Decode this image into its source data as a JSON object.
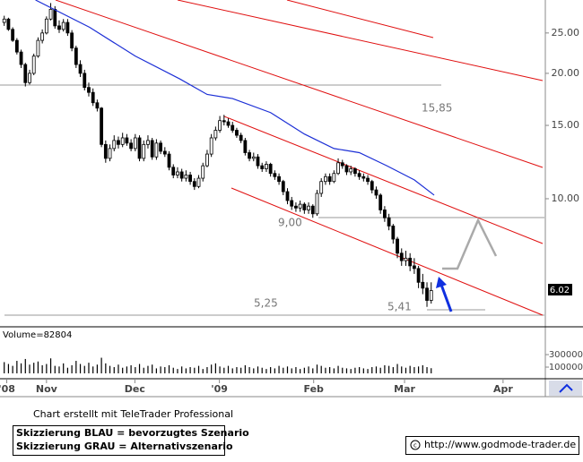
{
  "chart_data": {
    "type": "candlestick",
    "ylim": [
      5,
      30
    ],
    "log_scale": true,
    "yticks": [
      {
        "value": 25,
        "label": "25.00"
      },
      {
        "value": 20,
        "label": "20.00"
      },
      {
        "value": 15,
        "label": "15.00"
      },
      {
        "value": 10,
        "label": "10.00"
      }
    ],
    "xlim": [
      -1,
      128
    ],
    "xticks": [
      {
        "value": 0.6,
        "label": "'08"
      },
      {
        "value": 10,
        "label": "Nov"
      },
      {
        "value": 30.9,
        "label": "Dec"
      },
      {
        "value": 50.9,
        "label": "'09"
      },
      {
        "value": 73.2,
        "label": "Feb"
      },
      {
        "value": 94.7,
        "label": "Mar"
      },
      {
        "value": 118,
        "label": "Apr"
      }
    ],
    "candles": [
      [
        26.5,
        27.5,
        26,
        27
      ],
      [
        27,
        27.2,
        25.3,
        25.5
      ],
      [
        25.5,
        25.8,
        23.8,
        24
      ],
      [
        24,
        24.3,
        22.2,
        22.5
      ],
      [
        22.5,
        22.8,
        20.6,
        21
      ],
      [
        21,
        21.2,
        18.6,
        19
      ],
      [
        19,
        20.4,
        18.8,
        20
      ],
      [
        20,
        22.3,
        19.8,
        22
      ],
      [
        22,
        24.4,
        21.8,
        24
      ],
      [
        24,
        25.5,
        23.6,
        25
      ],
      [
        25,
        27.4,
        24.8,
        27
      ],
      [
        27,
        29.5,
        26.8,
        28.5
      ],
      [
        28.5,
        29,
        25.6,
        26
      ],
      [
        26,
        26.8,
        25,
        25.5
      ],
      [
        25.5,
        27,
        25.2,
        26.5
      ],
      [
        26.5,
        27,
        24.6,
        25
      ],
      [
        25,
        25.4,
        22.6,
        23
      ],
      [
        23,
        23.3,
        20.6,
        21
      ],
      [
        21,
        21.5,
        19.6,
        20
      ],
      [
        20,
        20.4,
        18.2,
        18.5
      ],
      [
        18.5,
        19,
        17.6,
        18
      ],
      [
        18,
        18.4,
        16.7,
        17
      ],
      [
        17,
        17.3,
        16.2,
        16.5
      ],
      [
        16.5,
        16.6,
        13.3,
        13.5
      ],
      [
        13.5,
        13.8,
        12.2,
        12.5
      ],
      [
        12.5,
        13.5,
        12.3,
        13.2
      ],
      [
        13.2,
        14.2,
        13,
        13.8
      ],
      [
        13.8,
        14.1,
        13.2,
        13.5
      ],
      [
        13.5,
        14.4,
        13.3,
        14
      ],
      [
        14,
        14.3,
        13.4,
        13.6
      ],
      [
        13.6,
        13.9,
        13,
        13.2
      ],
      [
        13.2,
        14.3,
        13,
        14
      ],
      [
        14,
        14.2,
        12.3,
        12.5
      ],
      [
        12.5,
        13.8,
        12.3,
        13.5
      ],
      [
        13.5,
        14.2,
        13.2,
        13.8
      ],
      [
        13.8,
        14,
        12.4,
        12.6
      ],
      [
        12.6,
        13.9,
        12.4,
        13.6
      ],
      [
        13.6,
        13.8,
        12.8,
        13
      ],
      [
        13,
        13.3,
        12.6,
        12.8
      ],
      [
        12.8,
        13,
        11.7,
        11.9
      ],
      [
        11.9,
        12.1,
        11.2,
        11.4
      ],
      [
        11.4,
        11.9,
        11.2,
        11.6
      ],
      [
        11.6,
        11.8,
        11,
        11.2
      ],
      [
        11.2,
        11.7,
        11,
        11.4
      ],
      [
        11.4,
        11.6,
        10.8,
        11
      ],
      [
        11,
        11.2,
        10.5,
        10.7
      ],
      [
        10.7,
        11.4,
        10.6,
        11.2
      ],
      [
        11.2,
        12.2,
        11,
        12
      ],
      [
        12,
        13.1,
        11.9,
        12.8
      ],
      [
        12.8,
        14.3,
        12.6,
        14
      ],
      [
        14,
        14.9,
        13.8,
        14.6
      ],
      [
        14.6,
        15.8,
        14.4,
        15.4
      ],
      [
        15.4,
        15.9,
        15,
        15.3
      ],
      [
        15.3,
        15.6,
        14.8,
        15
      ],
      [
        15,
        15.3,
        14.4,
        14.6
      ],
      [
        14.6,
        14.8,
        14,
        14.2
      ],
      [
        14.2,
        14.4,
        13.6,
        13.8
      ],
      [
        13.8,
        14,
        12.7,
        12.9
      ],
      [
        12.9,
        13.1,
        12.3,
        12.5
      ],
      [
        12.5,
        12.9,
        12.3,
        12.6
      ],
      [
        12.6,
        12.8,
        11.8,
        12
      ],
      [
        12,
        12.2,
        11.6,
        11.8
      ],
      [
        11.8,
        12.3,
        11.6,
        12.1
      ],
      [
        12.1,
        12.2,
        11.3,
        11.5
      ],
      [
        11.5,
        11.7,
        11.1,
        11.3
      ],
      [
        11.3,
        11.5,
        10.8,
        11
      ],
      [
        11,
        11.1,
        10.2,
        10.4
      ],
      [
        10.4,
        10.6,
        9.7,
        9.9
      ],
      [
        9.9,
        10.1,
        9.4,
        9.6
      ],
      [
        9.6,
        9.8,
        9.3,
        9.5
      ],
      [
        9.5,
        9.9,
        9.3,
        9.7
      ],
      [
        9.7,
        9.8,
        9.2,
        9.4
      ],
      [
        9.4,
        9.8,
        9.2,
        9.6
      ],
      [
        9.6,
        9.7,
        9,
        9.2
      ],
      [
        9.2,
        10.5,
        9.1,
        10.3
      ],
      [
        10.3,
        11.2,
        10.1,
        11
      ],
      [
        11,
        11.5,
        10.8,
        11.3
      ],
      [
        11.3,
        11.5,
        10.8,
        11
      ],
      [
        11,
        11.7,
        10.9,
        11.5
      ],
      [
        11.5,
        12.5,
        11.4,
        12.2
      ],
      [
        12.2,
        12.4,
        11.8,
        12
      ],
      [
        12,
        12.1,
        11.4,
        11.6
      ],
      [
        11.6,
        12,
        11.4,
        11.8
      ],
      [
        11.8,
        11.9,
        11.3,
        11.5
      ],
      [
        11.5,
        11.7,
        11.1,
        11.3
      ],
      [
        11.3,
        11.5,
        11,
        11.2
      ],
      [
        11.2,
        11.4,
        10.8,
        11
      ],
      [
        11,
        11.1,
        10.3,
        10.5
      ],
      [
        10.5,
        10.7,
        10,
        10.2
      ],
      [
        10.2,
        10.3,
        9.2,
        9.4
      ],
      [
        9.4,
        9.6,
        8.8,
        9
      ],
      [
        9,
        9.2,
        8.4,
        8.6
      ],
      [
        8.6,
        8.7,
        7.8,
        8
      ],
      [
        8,
        8.1,
        7.2,
        7.4
      ],
      [
        7.4,
        7.6,
        6.9,
        7.1
      ],
      [
        7.1,
        7.5,
        6.9,
        7.2
      ],
      [
        7.2,
        7.4,
        6.7,
        6.9
      ],
      [
        6.9,
        7.2,
        6.6,
        6.8
      ],
      [
        6.8,
        6.9,
        6.1,
        6.3
      ],
      [
        6.3,
        6.6,
        5.9,
        6.1
      ],
      [
        6.1,
        6.3,
        5.5,
        5.7
      ],
      [
        5.7,
        6.3,
        5.6,
        6.02
      ]
    ],
    "ma": {
      "color": "#1c2fd6",
      "x": [
        7.4,
        20.2,
        31,
        41.5,
        48,
        54,
        63,
        71,
        78,
        84,
        90.5,
        97,
        101.7
      ],
      "values": [
        30,
        25.8,
        22,
        19.4,
        17.8,
        17.4,
        16.1,
        14.3,
        13.2,
        12.9,
        12,
        11.1,
        10.2
      ]
    },
    "annotations": [
      "15,85",
      "9,00",
      "5,25",
      "5,41"
    ],
    "volume": {
      "label": "Volume=82804",
      "ylim": [
        0,
        530000
      ],
      "yticks": [
        300000,
        100000
      ],
      "values": [
        180000,
        150000,
        120000,
        200000,
        160000,
        230000,
        140000,
        170000,
        190000,
        130000,
        150000,
        240000,
        120000,
        110000,
        160000,
        90000,
        130000,
        200000,
        150000,
        120000,
        170000,
        110000,
        140000,
        250000,
        160000,
        120000,
        100000,
        140000,
        90000,
        110000,
        130000,
        100000,
        150000,
        90000,
        120000,
        140000,
        80000,
        110000,
        100000,
        130000,
        90000,
        70000,
        110000,
        80000,
        100000,
        90000,
        120000,
        70000,
        100000,
        140000,
        160000,
        110000,
        90000,
        120000,
        80000,
        100000,
        90000,
        130000,
        100000,
        80000,
        110000,
        90000,
        70000,
        100000,
        80000,
        120000,
        90000,
        110000,
        80000,
        100000,
        70000,
        90000,
        110000,
        80000,
        140000,
        120000,
        90000,
        100000,
        80000,
        120000,
        90000,
        80000,
        70000,
        90000,
        100000,
        80000,
        70000,
        100000,
        110000,
        90000,
        130000,
        120000,
        100000,
        150000,
        110000,
        90000,
        120000,
        100000,
        110000,
        130000,
        100000,
        82804
      ]
    }
  },
  "footer": {
    "credit": "Chart erstellt mit TeleTrader Professional",
    "notes": [
      "Skizzierung BLAU = bevorzugtes Szenario",
      "Skizzierung GRAU = Alternativszenario"
    ],
    "source": "http://www.godmode-trader.de"
  }
}
